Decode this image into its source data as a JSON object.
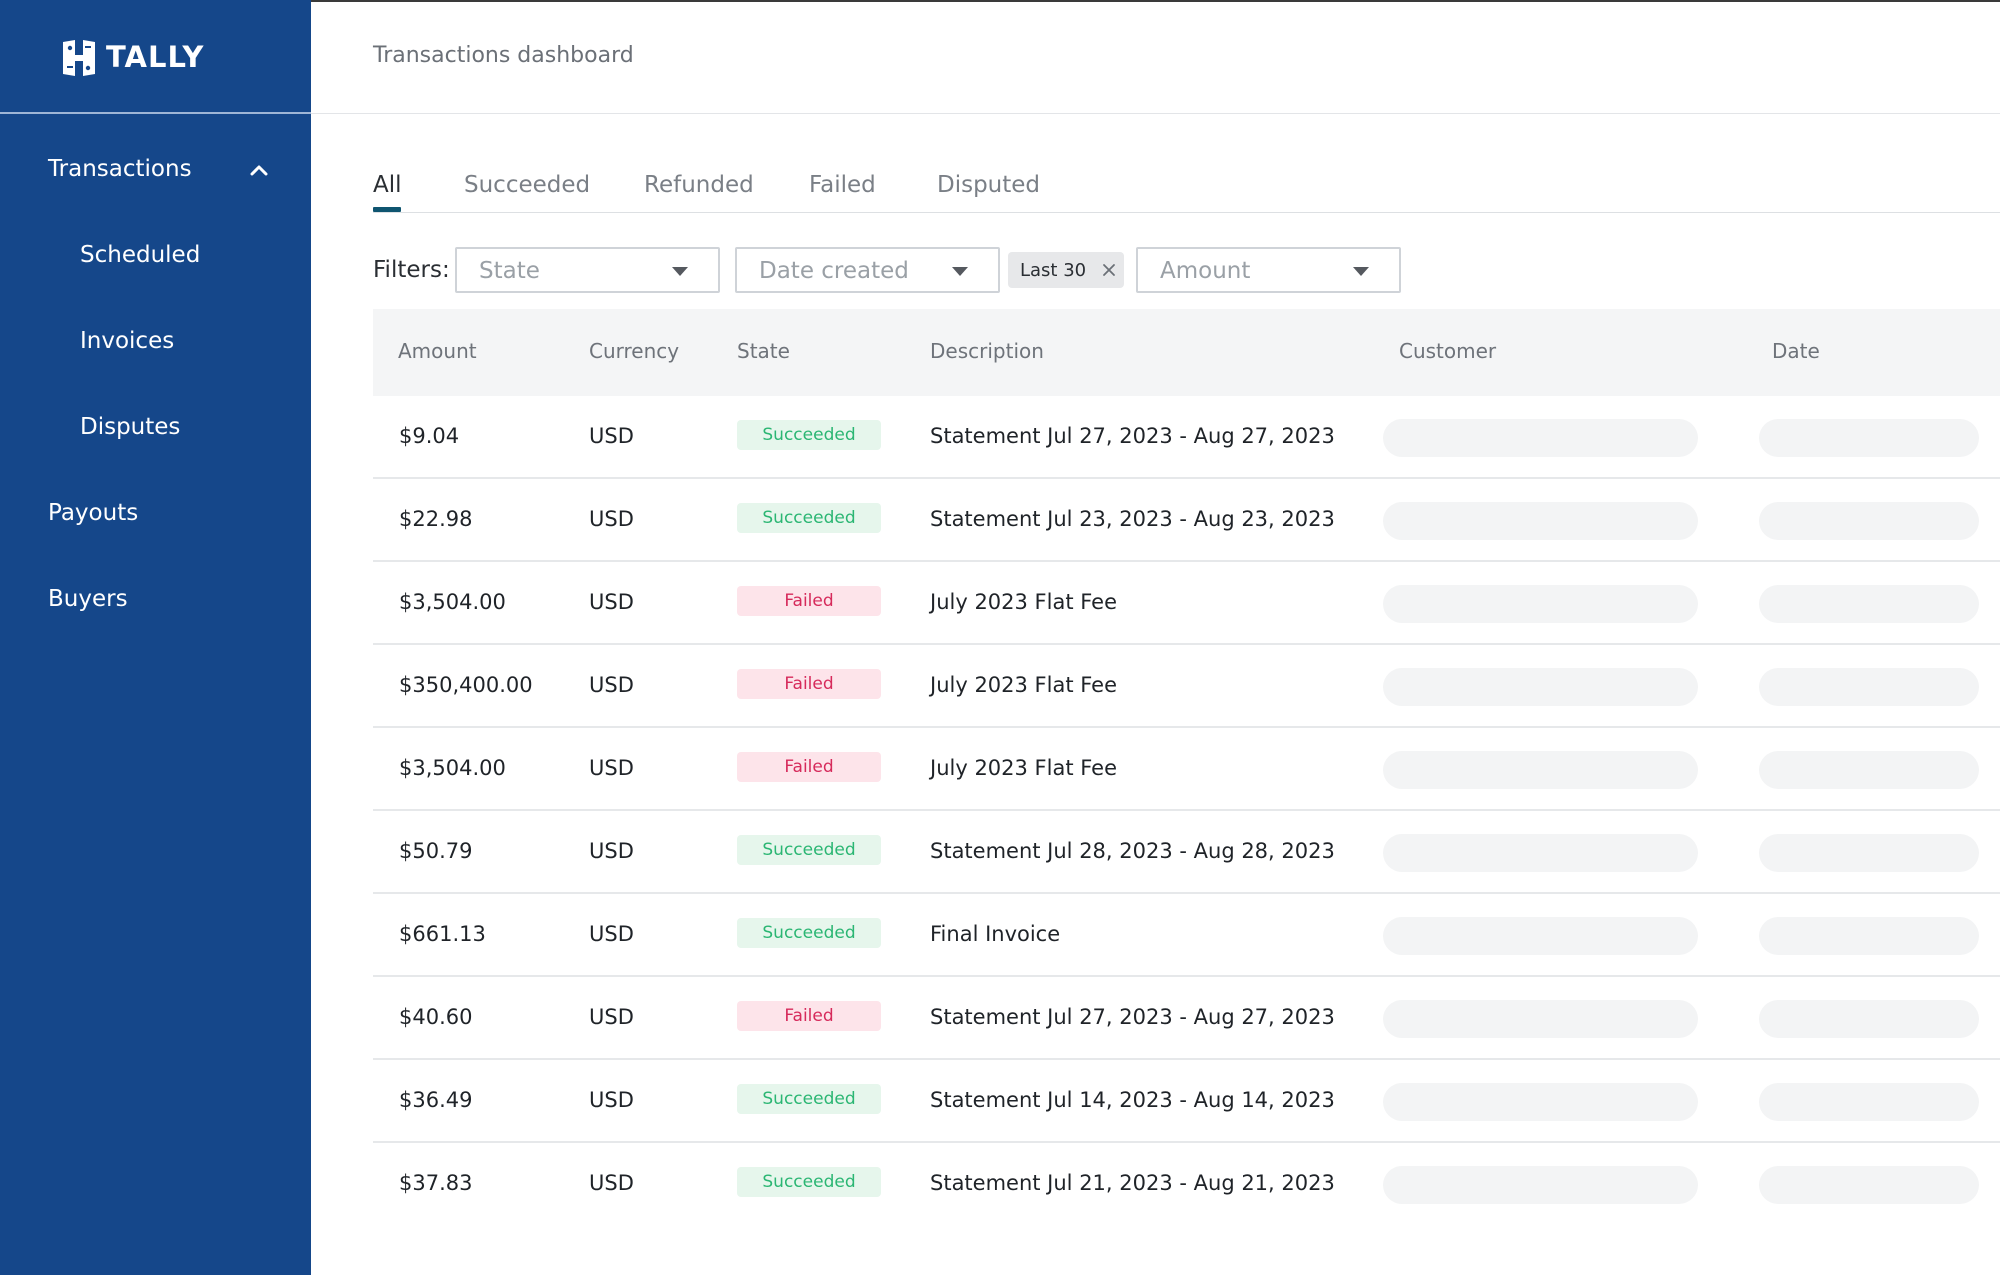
{
  "app": {
    "brand": "TALLY",
    "colors": {
      "sidebar": "#15478a",
      "active_tab": "#0f5570",
      "succeeded_bg": "#e6f6ec",
      "succeeded_text": "#2bb673",
      "failed_bg": "#fde4ea",
      "failed_text": "#d62a5b"
    }
  },
  "sidebar": {
    "items": [
      {
        "label": "Transactions",
        "icon": "chevron-up-icon"
      },
      {
        "label": "Scheduled"
      },
      {
        "label": "Invoices"
      },
      {
        "label": "Disputes"
      },
      {
        "label": "Payouts"
      },
      {
        "label": "Buyers"
      }
    ]
  },
  "header": {
    "title": "Transactions dashboard"
  },
  "tabs": [
    {
      "label": "All",
      "active": true
    },
    {
      "label": "Succeeded"
    },
    {
      "label": "Refunded"
    },
    {
      "label": "Failed"
    },
    {
      "label": "Disputed"
    }
  ],
  "filters": {
    "label": "Filters:",
    "state_placeholder": "State",
    "date_placeholder": "Date created",
    "date_chip": "Last 30",
    "amount_placeholder": "Amount"
  },
  "table": {
    "columns": [
      "Amount",
      "Currency",
      "State",
      "Description",
      "Customer",
      "Date"
    ],
    "rows": [
      {
        "amount": "$9.04",
        "currency": "USD",
        "state": "Succeeded",
        "description": "Statement Jul 27, 2023 - Aug 27, 2023"
      },
      {
        "amount": "$22.98",
        "currency": "USD",
        "state": "Succeeded",
        "description": "Statement Jul 23, 2023 - Aug 23, 2023"
      },
      {
        "amount": "$3,504.00",
        "currency": "USD",
        "state": "Failed",
        "description": "July 2023 Flat Fee"
      },
      {
        "amount": "$350,400.00",
        "currency": "USD",
        "state": "Failed",
        "description": "July 2023 Flat Fee"
      },
      {
        "amount": "$3,504.00",
        "currency": "USD",
        "state": "Failed",
        "description": "July 2023 Flat Fee"
      },
      {
        "amount": "$50.79",
        "currency": "USD",
        "state": "Succeeded",
        "description": "Statement Jul 28, 2023 - Aug 28, 2023"
      },
      {
        "amount": "$661.13",
        "currency": "USD",
        "state": "Succeeded",
        "description": "Final Invoice"
      },
      {
        "amount": "$40.60",
        "currency": "USD",
        "state": "Failed",
        "description": "Statement Jul 27, 2023 - Aug 27, 2023"
      },
      {
        "amount": "$36.49",
        "currency": "USD",
        "state": "Succeeded",
        "description": "Statement Jul 14, 2023 - Aug 14, 2023"
      },
      {
        "amount": "$37.83",
        "currency": "USD",
        "state": "Succeeded",
        "description": "Statement Jul 21, 2023 - Aug 21, 2023"
      }
    ]
  }
}
